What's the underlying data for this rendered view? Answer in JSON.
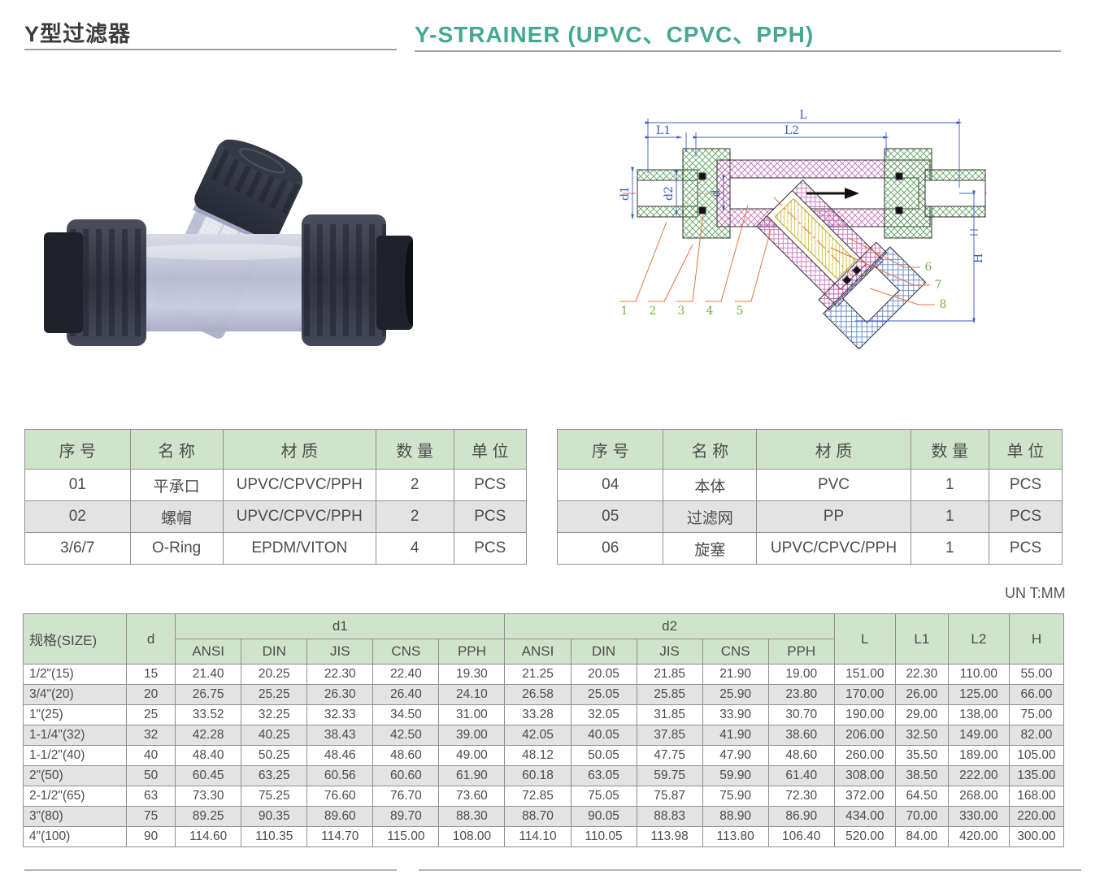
{
  "page": {
    "title_zh": "Y型过滤器",
    "title_en": "Y-STRAINER  (UPVC、CPVC、PPH)",
    "unit_note": "UN T:MM"
  },
  "colors": {
    "accent_teal": "#45a892",
    "table_header_bg": "#cfe4cb",
    "row_alt_bg": "#e3e3e3",
    "dimension_line_blue": "#3b5bc0",
    "leader_orange": "#e8743c",
    "callout_green": "#76b043"
  },
  "parts_table_left": {
    "headers": [
      "序 号",
      "名 称",
      "材 质",
      "数 量",
      "单 位"
    ],
    "rows": [
      [
        "01",
        "平承口",
        "UPVC/CPVC/PPH",
        "2",
        "PCS"
      ],
      [
        "02",
        "螺帽",
        "UPVC/CPVC/PPH",
        "2",
        "PCS"
      ],
      [
        "3/6/7",
        "O-Ring",
        "EPDM/VITON",
        "4",
        "PCS"
      ]
    ]
  },
  "parts_table_right": {
    "headers": [
      "序 号",
      "名 称",
      "材 质",
      "数 量",
      "单 位"
    ],
    "rows": [
      [
        "04",
        "本体",
        "PVC",
        "1",
        "PCS"
      ],
      [
        "05",
        "过滤网",
        "PP",
        "1",
        "PCS"
      ],
      [
        "06",
        "旋塞",
        "UPVC/CPVC/PPH",
        "1",
        "PCS"
      ]
    ]
  },
  "dimension_table": {
    "header": {
      "size": "规格(SIZE)",
      "d": "d",
      "d1": "d1",
      "d2": "d2",
      "L": "L",
      "L1": "L1",
      "L2": "L2",
      "H": "H"
    },
    "sub_header_row": [
      "ANSI",
      "DIN",
      "JIS",
      "CNS",
      "PPH",
      "ANSI",
      "DIN",
      "JIS",
      "CNS",
      "PPH"
    ],
    "rows": [
      [
        "1/2\"(15)",
        "15",
        "21.40",
        "20.25",
        "22.30",
        "22.40",
        "19.30",
        "21.25",
        "20.05",
        "21.85",
        "21.90",
        "19.00",
        "151.00",
        "22.30",
        "110.00",
        "55.00"
      ],
      [
        "3/4\"(20)",
        "20",
        "26.75",
        "25.25",
        "26.30",
        "26.40",
        "24.10",
        "26.58",
        "25.05",
        "25.85",
        "25.90",
        "23.80",
        "170.00",
        "26.00",
        "125.00",
        "66.00"
      ],
      [
        "1\"(25)",
        "25",
        "33.52",
        "32.25",
        "32.33",
        "34.50",
        "31.00",
        "33.28",
        "32.05",
        "31.85",
        "33.90",
        "30.70",
        "190.00",
        "29.00",
        "138.00",
        "75.00"
      ],
      [
        "1-1/4\"(32)",
        "32",
        "42.28",
        "40.25",
        "38.43",
        "42.50",
        "39.00",
        "42.05",
        "40.05",
        "37.85",
        "41.90",
        "38.60",
        "206.00",
        "32.50",
        "149.00",
        "82.00"
      ],
      [
        "1-1/2\"(40)",
        "40",
        "48.40",
        "50.25",
        "48.46",
        "48.60",
        "49.00",
        "48.12",
        "50.05",
        "47.75",
        "47.90",
        "48.60",
        "260.00",
        "35.50",
        "189.00",
        "105.00"
      ],
      [
        "2\"(50)",
        "50",
        "60.45",
        "63.25",
        "60.56",
        "60.60",
        "61.90",
        "60.18",
        "63.05",
        "59.75",
        "59.90",
        "61.40",
        "308.00",
        "38.50",
        "222.00",
        "135.00"
      ],
      [
        "2-1/2\"(65)",
        "63",
        "73.30",
        "75.25",
        "76.60",
        "76.70",
        "73.60",
        "72.85",
        "75.05",
        "75.87",
        "75.90",
        "72.30",
        "372.00",
        "64.50",
        "268.00",
        "168.00"
      ],
      [
        "3\"(80)",
        "75",
        "89.25",
        "90.35",
        "89.60",
        "89.70",
        "88.30",
        "88.70",
        "90.05",
        "88.83",
        "88.90",
        "86.90",
        "434.00",
        "70.00",
        "330.00",
        "220.00"
      ],
      [
        "4\"(100)",
        "90",
        "114.60",
        "110.35",
        "114.70",
        "115.00",
        "108.00",
        "114.10",
        "110.05",
        "113.98",
        "113.80",
        "106.40",
        "520.00",
        "84.00",
        "420.00",
        "300.00"
      ]
    ]
  },
  "diagram": {
    "dim_labels": {
      "L": "L",
      "L1": "L1",
      "L2": "L2",
      "d1": "d1",
      "d2": "d2",
      "d": "d",
      "H": "H"
    },
    "callouts": [
      "1",
      "2",
      "3",
      "4",
      "5",
      "6",
      "7",
      "8"
    ]
  }
}
